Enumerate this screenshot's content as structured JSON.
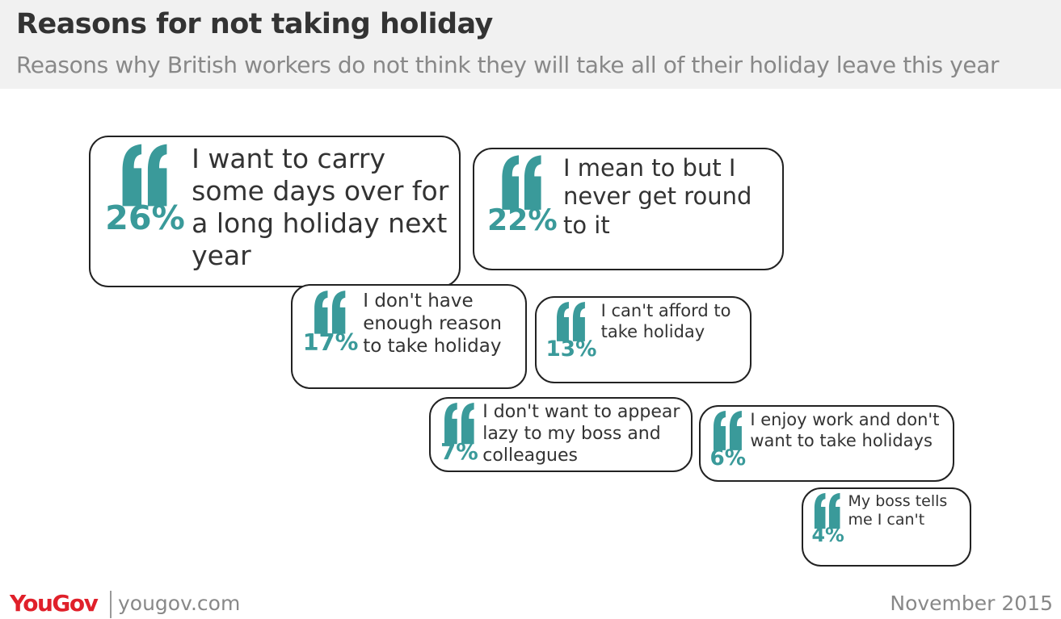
{
  "chart_data": {
    "type": "quote",
    "title": "Reasons for not taking holiday",
    "subtitle": "Reasons why British workers do not think they will take all of their holiday leave this year",
    "categories": [
      "I want to carry some days over for a long holiday next year",
      "I mean to but I never get round to it",
      "I don't have enough reason to take holiday",
      "I can't afford to take holiday",
      "I don't want to appear lazy to my boss and colleagues",
      "I enjoy work and don't want to take holidays",
      "My boss tells me I can't"
    ],
    "values": [
      26,
      22,
      17,
      13,
      7,
      6,
      4
    ],
    "value_labels": [
      "26%",
      "22%",
      "17%",
      "13%",
      "7%",
      "6%",
      "4%"
    ],
    "color": "#3a9a9a",
    "brand": "YouGov",
    "website": "yougov.com",
    "date": "November 2015"
  }
}
